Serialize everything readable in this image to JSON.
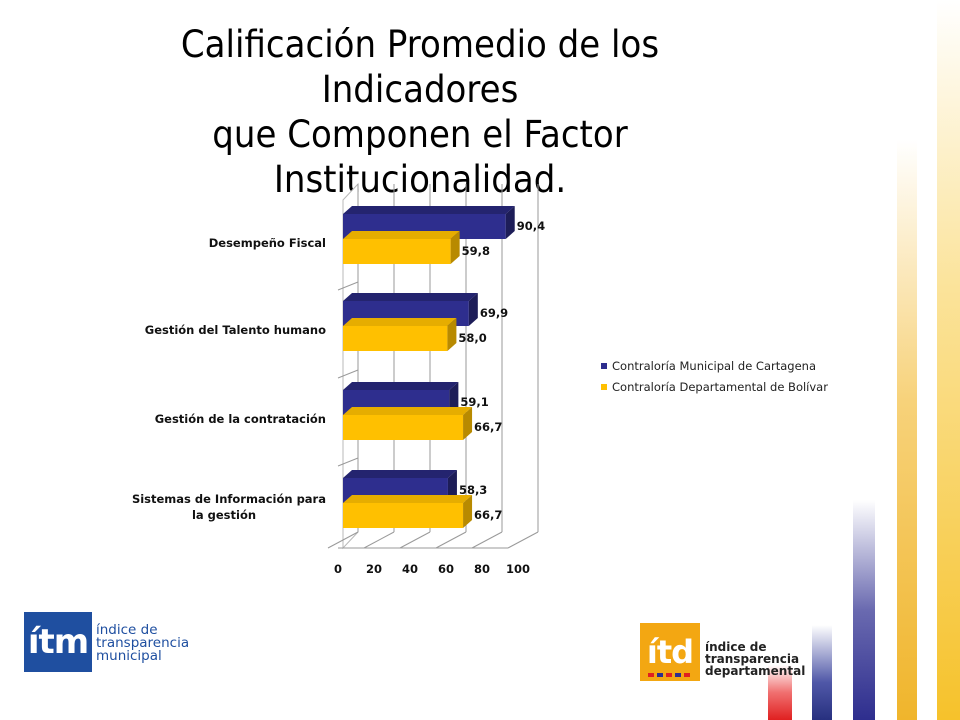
{
  "title_lines": [
    "Calificación Promedio de los Indicadores",
    "que Componen el Factor",
    "Institucionalidad."
  ],
  "chart_data": {
    "type": "bar",
    "orientation": "horizontal",
    "three_d": true,
    "categories": [
      "Desempeño Fiscal",
      "Gestión del Talento humano",
      "Gestión de la contratación",
      "Sistemas de Información para la gestión"
    ],
    "category_lines": [
      [
        "Desempeño Fiscal"
      ],
      [
        "Gestión del Talento humano"
      ],
      [
        "Gestión de la contratación"
      ],
      [
        "Sistemas de Información para",
        "la gestión"
      ]
    ],
    "series": [
      {
        "name": "Contraloría Municipal de Cartagena",
        "values": [
          90.4,
          69.9,
          59.1,
          58.3
        ],
        "labels": [
          "90,4",
          "69,9",
          "59,1",
          "58,3"
        ],
        "color": "#2e2e8e"
      },
      {
        "name": "Contraloría Departamental de Bolívar",
        "values": [
          59.8,
          58.0,
          66.7,
          66.7
        ],
        "labels": [
          "59,8",
          "58,0",
          "66,7",
          "66,7"
        ],
        "color": "#ffc000"
      }
    ],
    "x_ticks": [
      "0",
      "20",
      "40",
      "60",
      "80",
      "100"
    ],
    "xlim": [
      0,
      100
    ],
    "grid": true,
    "legend_position": "right"
  },
  "logos": {
    "itm": {
      "mark": "ítm",
      "lines": [
        "índice de",
        "transparencia",
        "municipal"
      ],
      "color": "#1f4fa0"
    },
    "itd": {
      "mark": "ítd",
      "lines": [
        "índice de",
        "transparencia",
        "departamental"
      ],
      "color": "#f3a712"
    }
  }
}
